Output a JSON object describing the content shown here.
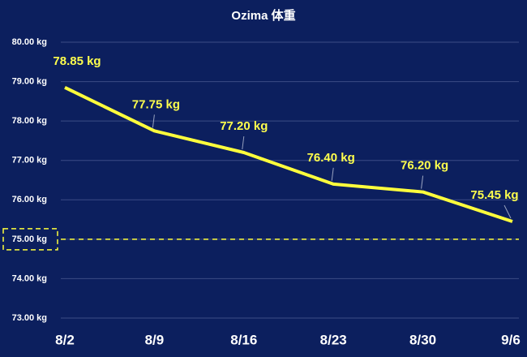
{
  "chart_data": {
    "type": "line",
    "title": "Ozima 体重",
    "categories": [
      "8/2",
      "8/9",
      "8/16",
      "8/23",
      "8/30",
      "9/6"
    ],
    "series": [
      {
        "name": "体重",
        "color": "#ffff3c",
        "values": [
          78.85,
          77.75,
          77.2,
          76.4,
          76.2,
          75.45
        ],
        "value_labels": [
          "78.85 kg",
          "77.75 kg",
          "77.20 kg",
          "76.40 kg",
          "76.20 kg",
          "75.45 kg"
        ]
      }
    ],
    "ylim": [
      73,
      80
    ],
    "yticks": [
      {
        "value": 73,
        "label": "73.00 kg"
      },
      {
        "value": 74,
        "label": "74.00 kg"
      },
      {
        "value": 75,
        "label": "75.00 kg"
      },
      {
        "value": 76,
        "label": "76.00 kg"
      },
      {
        "value": 77,
        "label": "77.00 kg"
      },
      {
        "value": 78,
        "label": "78.00 kg"
      },
      {
        "value": 79,
        "label": "79.00 kg"
      },
      {
        "value": 80,
        "label": "80.00 kg"
      }
    ],
    "target": 75,
    "grid": true
  }
}
